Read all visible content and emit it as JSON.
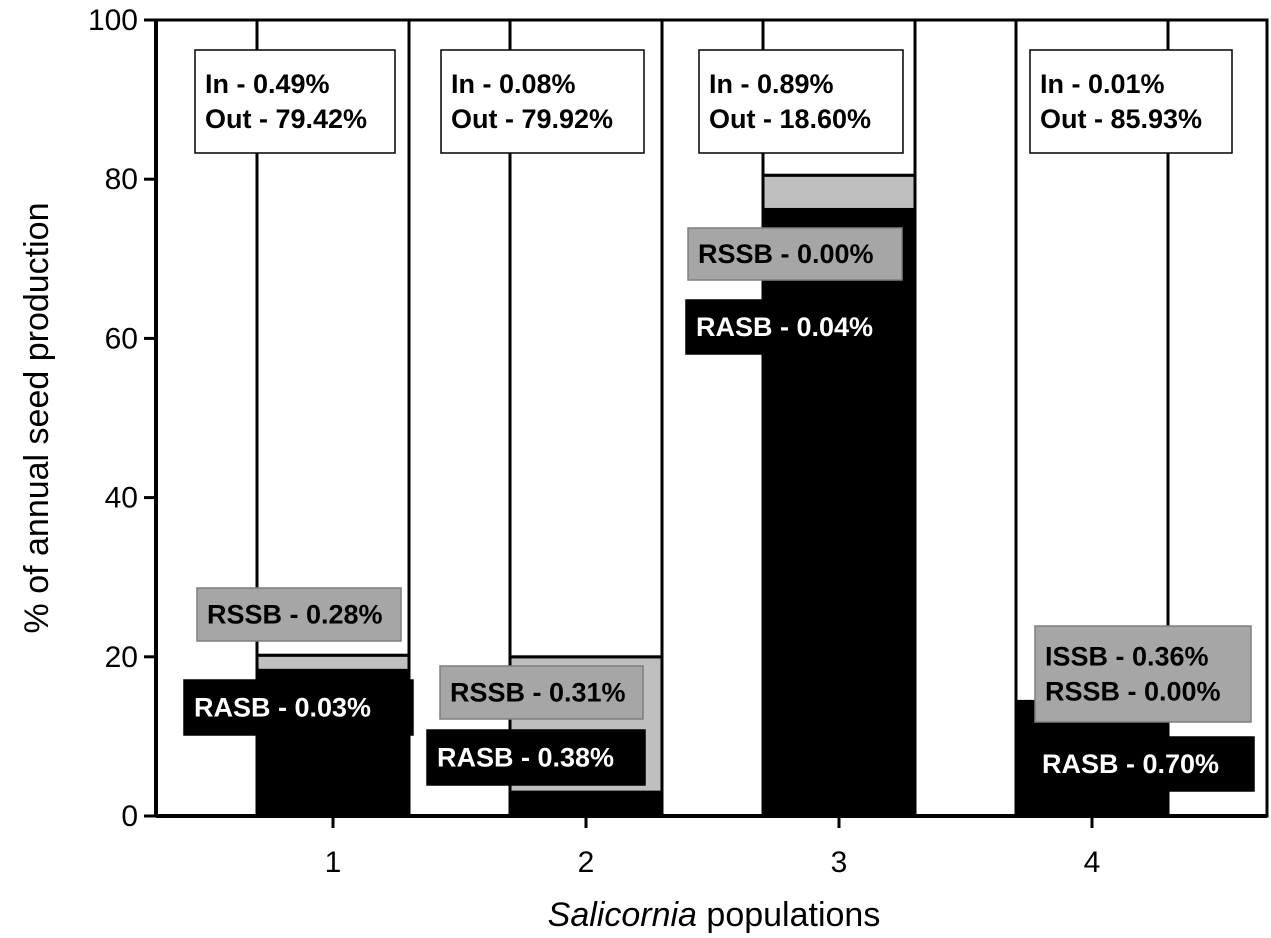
{
  "chart_data": {
    "type": "bar",
    "stacked": true,
    "categories": [
      "1",
      "2",
      "3",
      "4"
    ],
    "xlabel_italic": "Salicornia",
    "xlabel_rest": " populations",
    "ylabel": "% of annual seed production",
    "ylim": [
      0,
      100
    ],
    "yticks": [
      0,
      20,
      40,
      60,
      80,
      100
    ],
    "grid": false,
    "segments": [
      {
        "category": "1",
        "lo": 0,
        "hi": 18.3,
        "fill": "#000000"
      },
      {
        "category": "1",
        "lo": 18.3,
        "hi": 20.2,
        "fill": "#bfbfbf"
      },
      {
        "category": "1",
        "lo": 20.2,
        "hi": 100,
        "fill": "#ffffff"
      },
      {
        "category": "2",
        "lo": 0,
        "hi": 3.0,
        "fill": "#000000"
      },
      {
        "category": "2",
        "lo": 3.0,
        "hi": 20.0,
        "fill": "#bfbfbf"
      },
      {
        "category": "2",
        "lo": 20.0,
        "hi": 100,
        "fill": "#ffffff"
      },
      {
        "category": "3",
        "lo": 0,
        "hi": 76.2,
        "fill": "#000000"
      },
      {
        "category": "3",
        "lo": 76.2,
        "hi": 80.5,
        "fill": "#bfbfbf"
      },
      {
        "category": "3",
        "lo": 80.5,
        "hi": 100,
        "fill": "#ffffff"
      },
      {
        "category": "4",
        "lo": 0,
        "hi": 14.4,
        "fill": "#000000"
      },
      {
        "category": "4",
        "lo": 14.4,
        "hi": 100,
        "fill": "#ffffff"
      }
    ],
    "annotations": [
      {
        "category": "1",
        "lines": [
          "In - 0.49%",
          "Out - 79.42%"
        ],
        "style": "white"
      },
      {
        "category": "1",
        "lines": [
          "RSSB - 0.28%"
        ],
        "style": "gray"
      },
      {
        "category": "1",
        "lines": [
          "RASB - 0.03%"
        ],
        "style": "black"
      },
      {
        "category": "2",
        "lines": [
          "In - 0.08%",
          "Out - 79.92%"
        ],
        "style": "white"
      },
      {
        "category": "2",
        "lines": [
          "RSSB - 0.31%"
        ],
        "style": "gray"
      },
      {
        "category": "2",
        "lines": [
          "RASB - 0.38%"
        ],
        "style": "black"
      },
      {
        "category": "3",
        "lines": [
          "In - 0.89%",
          "Out - 18.60%"
        ],
        "style": "white"
      },
      {
        "category": "3",
        "lines": [
          "RSSB - 0.00%"
        ],
        "style": "gray"
      },
      {
        "category": "3",
        "lines": [
          "RASB - 0.04%"
        ],
        "style": "black"
      },
      {
        "category": "4",
        "lines": [
          "In - 0.01%",
          "Out - 85.93%"
        ],
        "style": "white"
      },
      {
        "category": "4",
        "lines": [
          "ISSB - 0.36%",
          "RSSB - 0.00%"
        ],
        "style": "gray"
      },
      {
        "category": "4",
        "lines": [
          "RASB - 0.70%"
        ],
        "style": "black"
      }
    ]
  }
}
